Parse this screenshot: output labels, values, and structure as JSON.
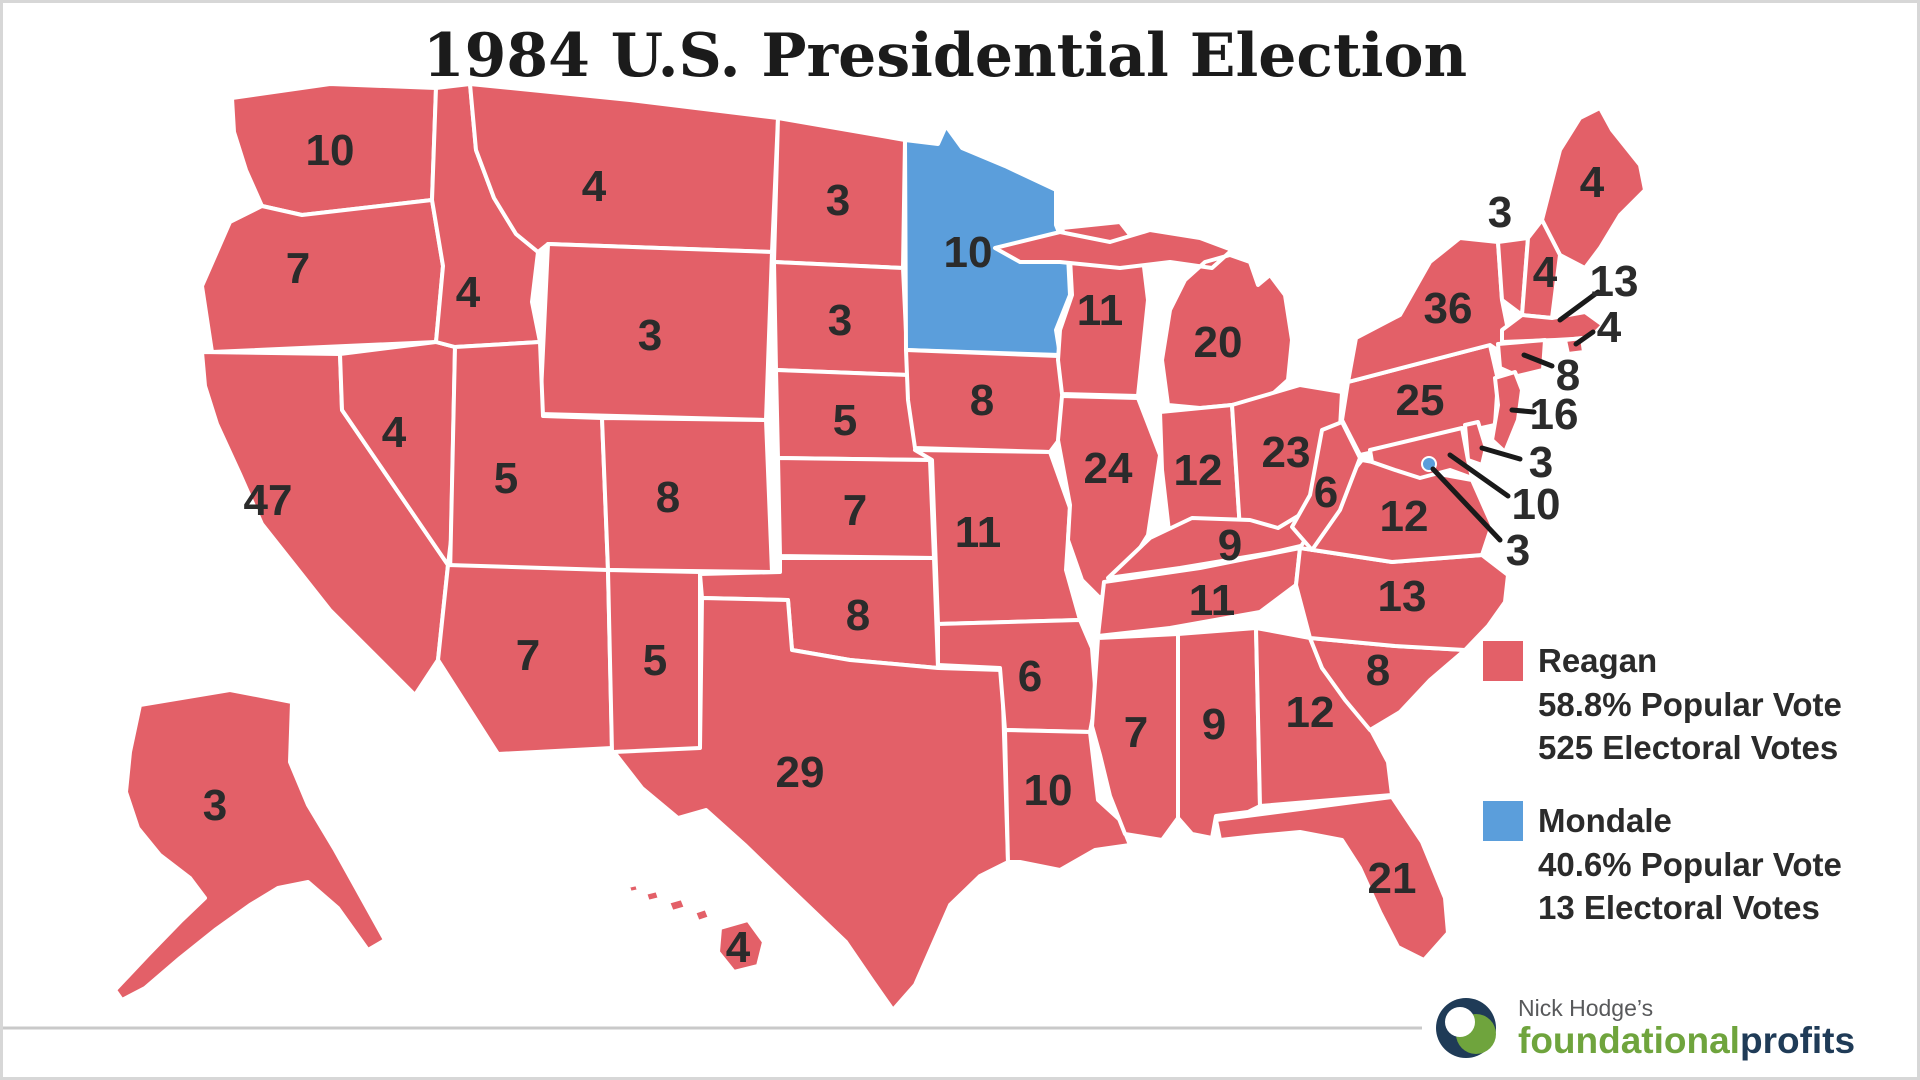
{
  "title": "1984 U.S. Presidential Election",
  "colors": {
    "reagan": "#E36068",
    "mondale": "#5B9EDB",
    "state_border": "#FFFFFF",
    "label": "#2B2B2B",
    "callout_line": "#1A1A1A",
    "footer_rule": "#C9C9C9",
    "brand_green": "#6FA43D",
    "brand_navy": "#1F3B57",
    "title": "#1B1B1B"
  },
  "legend": {
    "items": [
      {
        "party": "Reagan",
        "popular_vote": "58.8% Popular Vote",
        "electoral_votes": "525 Electoral Votes",
        "color_key": "reagan"
      },
      {
        "party": "Mondale",
        "popular_vote": "40.6% Popular Vote",
        "electoral_votes": "13 Electoral Votes",
        "color_key": "mondale"
      }
    ]
  },
  "footer": {
    "brand_prefix": "Nick Hodge’s",
    "brand_green_text": "foundational",
    "brand_navy_text": "profits"
  },
  "states": [
    {
      "abbr": "WA",
      "name": "Washington",
      "votes": 10,
      "winner": "reagan"
    },
    {
      "abbr": "OR",
      "name": "Oregon",
      "votes": 7,
      "winner": "reagan"
    },
    {
      "abbr": "CA",
      "name": "California",
      "votes": 47,
      "winner": "reagan"
    },
    {
      "abbr": "NV",
      "name": "Nevada",
      "votes": 4,
      "winner": "reagan"
    },
    {
      "abbr": "ID",
      "name": "Idaho",
      "votes": 4,
      "winner": "reagan"
    },
    {
      "abbr": "MT",
      "name": "Montana",
      "votes": 4,
      "winner": "reagan"
    },
    {
      "abbr": "WY",
      "name": "Wyoming",
      "votes": 3,
      "winner": "reagan"
    },
    {
      "abbr": "UT",
      "name": "Utah",
      "votes": 5,
      "winner": "reagan"
    },
    {
      "abbr": "CO",
      "name": "Colorado",
      "votes": 8,
      "winner": "reagan"
    },
    {
      "abbr": "AZ",
      "name": "Arizona",
      "votes": 7,
      "winner": "reagan"
    },
    {
      "abbr": "NM",
      "name": "New Mexico",
      "votes": 5,
      "winner": "reagan"
    },
    {
      "abbr": "AK",
      "name": "Alaska",
      "votes": 3,
      "winner": "reagan"
    },
    {
      "abbr": "HI",
      "name": "Hawaii",
      "votes": 4,
      "winner": "reagan"
    },
    {
      "abbr": "ND",
      "name": "North Dakota",
      "votes": 3,
      "winner": "reagan"
    },
    {
      "abbr": "SD",
      "name": "South Dakota",
      "votes": 3,
      "winner": "reagan"
    },
    {
      "abbr": "NE",
      "name": "Nebraska",
      "votes": 5,
      "winner": "reagan"
    },
    {
      "abbr": "KS",
      "name": "Kansas",
      "votes": 7,
      "winner": "reagan"
    },
    {
      "abbr": "OK",
      "name": "Oklahoma",
      "votes": 8,
      "winner": "reagan"
    },
    {
      "abbr": "TX",
      "name": "Texas",
      "votes": 29,
      "winner": "reagan"
    },
    {
      "abbr": "MN",
      "name": "Minnesota",
      "votes": 10,
      "winner": "mondale"
    },
    {
      "abbr": "IA",
      "name": "Iowa",
      "votes": 8,
      "winner": "reagan"
    },
    {
      "abbr": "MO",
      "name": "Missouri",
      "votes": 11,
      "winner": "reagan"
    },
    {
      "abbr": "AR",
      "name": "Arkansas",
      "votes": 6,
      "winner": "reagan"
    },
    {
      "abbr": "LA",
      "name": "Louisiana",
      "votes": 10,
      "winner": "reagan"
    },
    {
      "abbr": "WI",
      "name": "Wisconsin",
      "votes": 11,
      "winner": "reagan"
    },
    {
      "abbr": "IL",
      "name": "Illinois",
      "votes": 24,
      "winner": "reagan"
    },
    {
      "abbr": "MI",
      "name": "Michigan",
      "votes": 20,
      "winner": "reagan"
    },
    {
      "abbr": "IN",
      "name": "Indiana",
      "votes": 12,
      "winner": "reagan"
    },
    {
      "abbr": "OH",
      "name": "Ohio",
      "votes": 23,
      "winner": "reagan"
    },
    {
      "abbr": "KY",
      "name": "Kentucky",
      "votes": 9,
      "winner": "reagan"
    },
    {
      "abbr": "TN",
      "name": "Tennessee",
      "votes": 11,
      "winner": "reagan"
    },
    {
      "abbr": "MS",
      "name": "Mississippi",
      "votes": 7,
      "winner": "reagan"
    },
    {
      "abbr": "AL",
      "name": "Alabama",
      "votes": 9,
      "winner": "reagan"
    },
    {
      "abbr": "GA",
      "name": "Georgia",
      "votes": 12,
      "winner": "reagan"
    },
    {
      "abbr": "FL",
      "name": "Florida",
      "votes": 21,
      "winner": "reagan"
    },
    {
      "abbr": "SC",
      "name": "South Carolina",
      "votes": 8,
      "winner": "reagan"
    },
    {
      "abbr": "NC",
      "name": "North Carolina",
      "votes": 13,
      "winner": "reagan"
    },
    {
      "abbr": "VA",
      "name": "Virginia",
      "votes": 12,
      "winner": "reagan"
    },
    {
      "abbr": "WV",
      "name": "West Virginia",
      "votes": 6,
      "winner": "reagan"
    },
    {
      "abbr": "PA",
      "name": "Pennsylvania",
      "votes": 25,
      "winner": "reagan"
    },
    {
      "abbr": "NY",
      "name": "New York",
      "votes": 36,
      "winner": "reagan"
    },
    {
      "abbr": "ME",
      "name": "Maine",
      "votes": 4,
      "winner": "reagan"
    },
    {
      "abbr": "VT",
      "name": "Vermont",
      "votes": 3,
      "winner": "reagan"
    },
    {
      "abbr": "NH",
      "name": "New Hampshire",
      "votes": 4,
      "winner": "reagan"
    },
    {
      "abbr": "MA",
      "name": "Massachusetts",
      "votes": 13,
      "winner": "reagan"
    },
    {
      "abbr": "RI",
      "name": "Rhode Island",
      "votes": 4,
      "winner": "reagan"
    },
    {
      "abbr": "CT",
      "name": "Connecticut",
      "votes": 8,
      "winner": "reagan"
    },
    {
      "abbr": "NJ",
      "name": "New Jersey",
      "votes": 16,
      "winner": "reagan"
    },
    {
      "abbr": "DE",
      "name": "Delaware",
      "votes": 3,
      "winner": "reagan"
    },
    {
      "abbr": "MD",
      "name": "Maryland",
      "votes": 10,
      "winner": "reagan"
    },
    {
      "abbr": "DC",
      "name": "District of Columbia",
      "votes": 3,
      "winner": "mondale"
    }
  ]
}
